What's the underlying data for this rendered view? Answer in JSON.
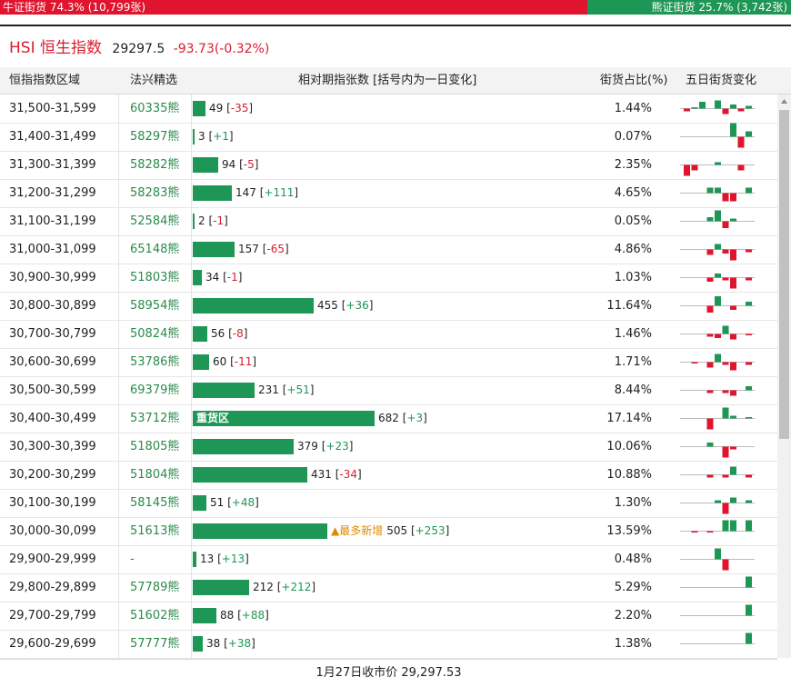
{
  "top_bar": {
    "bull_label": "牛证街货 74.3% (10,799张)",
    "bear_label": "熊证街货 25.7% (3,742张)",
    "bull_color": "#e0142e",
    "bear_color": "#1e9655"
  },
  "header": {
    "title": "HSI 恒生指数",
    "price": "29297.5",
    "change": "-93.73(-0.32%)"
  },
  "columns": {
    "range": "恒指指数区域",
    "issuer": "法兴精选",
    "change": "相对期指张数 [括号内为一日变化]",
    "share": "街货占比(%)",
    "five_day": "五日街货变化"
  },
  "rows": [
    {
      "range": "31,500-31,599",
      "bear": "60335熊",
      "count": 49,
      "count_text": "49",
      "delta": "-35",
      "share": "1.44%",
      "spark": [
        -1,
        0.5,
        2.5,
        0,
        3,
        -2,
        1.5,
        -1,
        1
      ]
    },
    {
      "range": "31,400-31,499",
      "bear": "58297熊",
      "count": 3,
      "count_text": "3",
      "delta": "+1",
      "share": "0.07%",
      "spark": [
        0,
        0,
        0,
        0,
        0,
        0,
        5,
        -4,
        2
      ]
    },
    {
      "range": "31,300-31,399",
      "bear": "58282熊",
      "count": 94,
      "count_text": "94",
      "delta": "-5",
      "share": "2.35%",
      "spark": [
        -4,
        -2,
        0,
        0,
        1,
        0,
        0,
        -2,
        0
      ]
    },
    {
      "range": "31,200-31,299",
      "bear": "58283熊",
      "count": 147,
      "count_text": "147",
      "delta": "+111",
      "share": "4.65%",
      "spark": [
        0,
        0,
        0,
        2,
        2,
        -3,
        -3,
        0,
        2
      ]
    },
    {
      "range": "31,100-31,199",
      "bear": "52584熊",
      "count": 2,
      "count_text": "2",
      "delta": "-1",
      "share": "0.05%",
      "spark": [
        0,
        0,
        0,
        1.5,
        4,
        -2.5,
        1,
        0,
        0
      ]
    },
    {
      "range": "31,000-31,099",
      "bear": "65148熊",
      "count": 157,
      "count_text": "157",
      "delta": "-65",
      "share": "4.86%",
      "spark": [
        0,
        0,
        0,
        -2,
        2,
        -1.5,
        -4,
        0,
        -1
      ]
    },
    {
      "range": "30,900-30,999",
      "bear": "51803熊",
      "count": 34,
      "count_text": "34",
      "delta": "-1",
      "share": "1.03%",
      "spark": [
        0,
        0,
        0,
        -1.5,
        1.5,
        -1,
        -4,
        0,
        -1
      ]
    },
    {
      "range": "30,800-30,899",
      "bear": "58954熊",
      "count": 455,
      "count_text": "455",
      "delta": "+36",
      "share": "11.64%",
      "spark": [
        0,
        0,
        0,
        -2.5,
        3.5,
        0,
        -1.5,
        0,
        1.5
      ]
    },
    {
      "range": "30,700-30,799",
      "bear": "50824熊",
      "count": 56,
      "count_text": "56",
      "delta": "-8",
      "share": "1.46%",
      "spark": [
        0,
        0,
        0,
        -1,
        -1.5,
        3,
        -2,
        0,
        -0.5
      ]
    },
    {
      "range": "30,600-30,699",
      "bear": "53786熊",
      "count": 60,
      "count_text": "60",
      "delta": "-11",
      "share": "1.71%",
      "spark": [
        0,
        -0.5,
        0,
        -2,
        3,
        -1,
        -3,
        0,
        -1
      ]
    },
    {
      "range": "30,500-30,599",
      "bear": "69379熊",
      "count": 231,
      "count_text": "231",
      "delta": "+51",
      "share": "8.44%",
      "spark": [
        0,
        0,
        0,
        -1,
        0,
        -1,
        -2,
        0,
        1.5
      ]
    },
    {
      "range": "30,400-30,499",
      "bear": "53712熊",
      "count": 682,
      "count_text": "682",
      "delta": "+3",
      "share": "17.14%",
      "note": "重货区",
      "spark": [
        0,
        0,
        0,
        -4,
        0,
        4,
        1,
        0,
        0.5
      ]
    },
    {
      "range": "30,300-30,399",
      "bear": "51805熊",
      "count": 379,
      "count_text": "379",
      "delta": "+23",
      "share": "10.06%",
      "spark": [
        0,
        0,
        0,
        1.5,
        0,
        -4,
        -1,
        0,
        0
      ]
    },
    {
      "range": "30,200-30,299",
      "bear": "51804熊",
      "count": 431,
      "count_text": "431",
      "delta": "-34",
      "share": "10.88%",
      "spark": [
        0,
        0,
        0,
        -1,
        0,
        -1,
        3,
        0,
        -1
      ]
    },
    {
      "range": "30,100-30,199",
      "bear": "58145熊",
      "count": 51,
      "count_text": "51",
      "delta": "+48",
      "share": "1.30%",
      "spark": [
        0,
        0,
        0,
        0,
        1,
        -4,
        2,
        0,
        1
      ]
    },
    {
      "range": "30,000-30,099",
      "bear": "51613熊",
      "count": 505,
      "count_text": "505",
      "delta": "+253",
      "share": "13.59%",
      "note": "▲最多新增",
      "spark": [
        0,
        -0.5,
        0,
        -0.5,
        0,
        4,
        4,
        0,
        4
      ]
    },
    {
      "range": "29,900-29,999",
      "bear": "-",
      "count": 13,
      "count_text": "13",
      "delta": "+13",
      "share": "0.48%",
      "spark": [
        0,
        0,
        0,
        0,
        4,
        -4,
        0,
        0,
        0
      ]
    },
    {
      "range": "29,800-29,899",
      "bear": "57789熊",
      "count": 212,
      "count_text": "212",
      "delta": "+212",
      "share": "5.29%",
      "spark": [
        0,
        0,
        0,
        0,
        0,
        0,
        0,
        0,
        4
      ]
    },
    {
      "range": "29,700-29,799",
      "bear": "51602熊",
      "count": 88,
      "count_text": "88",
      "delta": "+88",
      "share": "2.20%",
      "spark": [
        0,
        0,
        0,
        0,
        0,
        0,
        0,
        0,
        4
      ]
    },
    {
      "range": "29,600-29,699",
      "bear": "57777熊",
      "count": 38,
      "count_text": "38",
      "delta": "+38",
      "share": "1.38%",
      "spark": [
        0,
        0,
        0,
        0,
        0,
        0,
        0,
        0,
        4
      ]
    }
  ],
  "footer": {
    "close_text": "1月27日收市价 29,297.53"
  }
}
